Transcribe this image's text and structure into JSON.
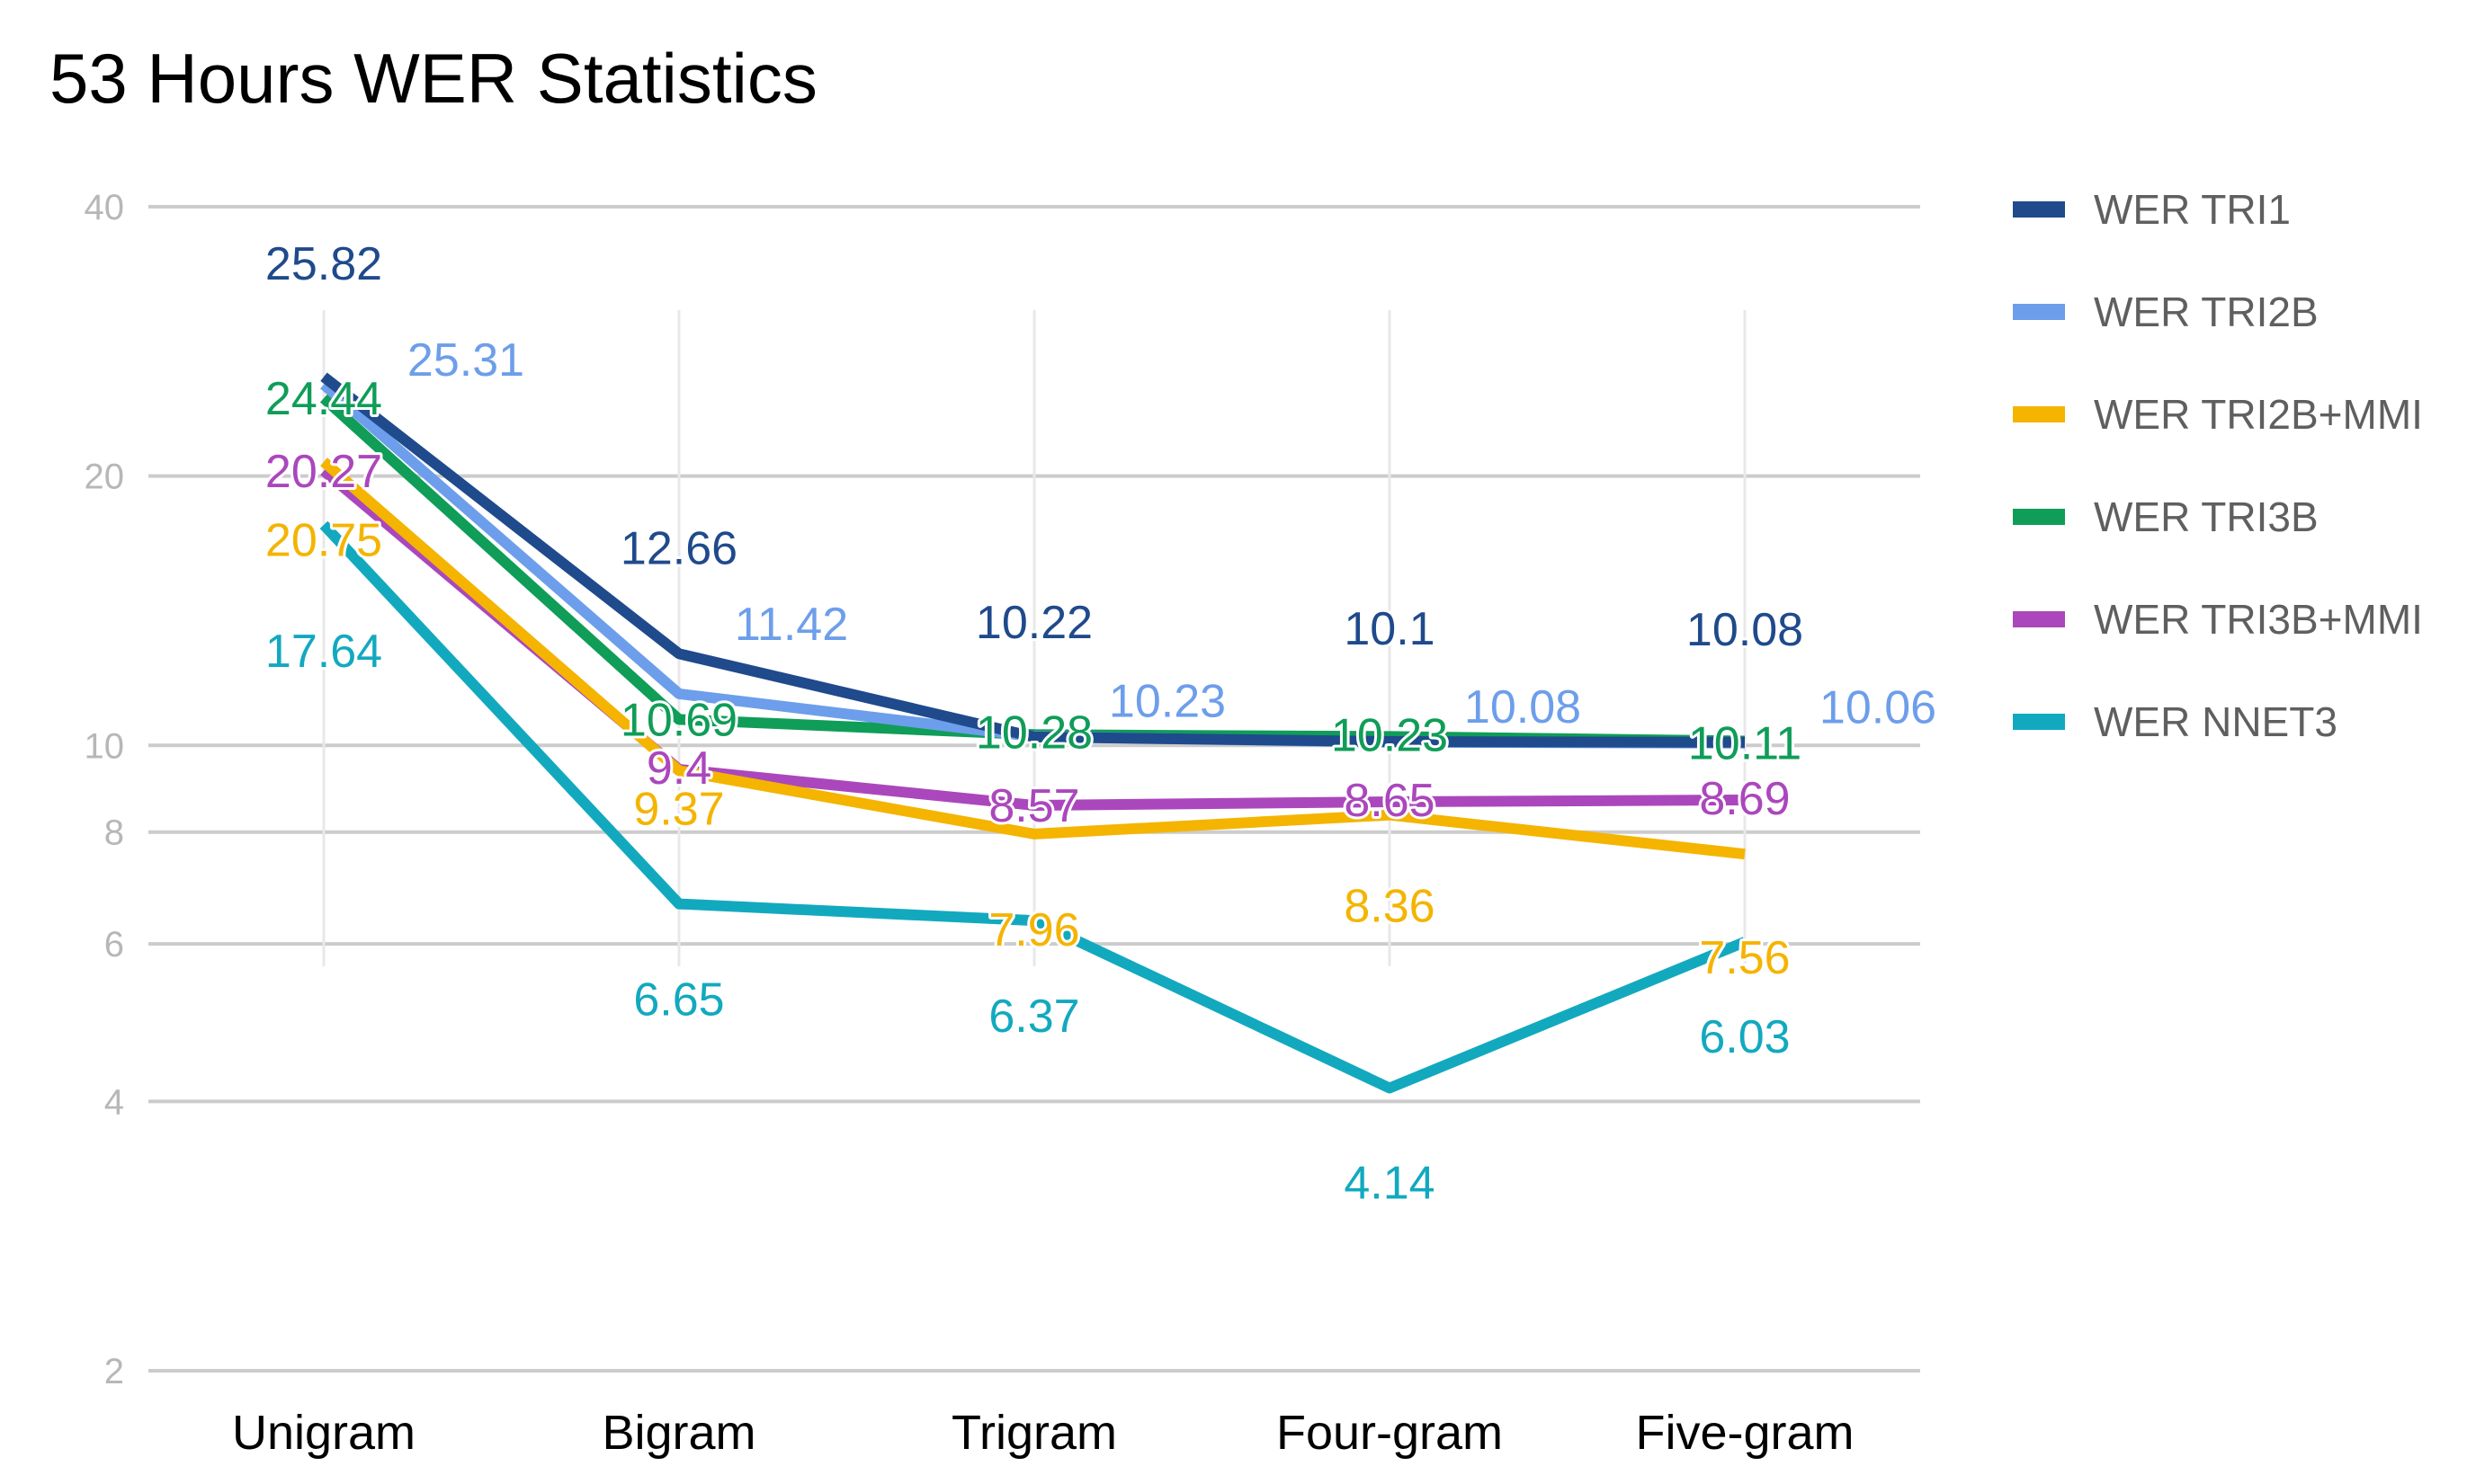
{
  "chart_data": {
    "type": "line",
    "title": "53 Hours WER Statistics",
    "xlabel": "",
    "ylabel": "",
    "yscale": "log",
    "ylim": [
      2,
      40
    ],
    "yticks": [
      {
        "value": 2,
        "label": "2"
      },
      {
        "value": 4,
        "label": "4"
      },
      {
        "value": 6,
        "label": "6"
      },
      {
        "value": 8,
        "label": "8"
      },
      {
        "value": 10,
        "label": "10"
      },
      {
        "value": 20,
        "label": "20"
      },
      {
        "value": 40,
        "label": "40"
      }
    ],
    "grid": true,
    "legend_position": "right",
    "categories": [
      "Unigram",
      "Bigram",
      "Trigram",
      "Four-gram",
      "Five-gram"
    ],
    "series": [
      {
        "name": "WER TRI1",
        "color": "#1f4a8c",
        "values": [
          25.82,
          12.66,
          10.22,
          10.1,
          10.08
        ],
        "labels": [
          "25.82",
          "12.66",
          "10.22",
          "10.1",
          "10.08"
        ]
      },
      {
        "name": "WER TRI2B",
        "color": "#6d9eeb",
        "values": [
          25.31,
          11.42,
          10.23,
          10.08,
          10.06
        ],
        "labels": [
          "25.31",
          "11.42",
          "10.23",
          "10.08",
          "10.06"
        ]
      },
      {
        "name": "WER TRI2B+MMI",
        "color": "#f4b400",
        "values": [
          20.75,
          9.37,
          7.96,
          8.36,
          7.56
        ],
        "labels": [
          "20.75",
          "9.37",
          "7.96",
          "8.36",
          "7.56"
        ]
      },
      {
        "name": "WER TRI3B",
        "color": "#0f9d58",
        "values": [
          24.44,
          10.69,
          10.28,
          10.23,
          10.11
        ],
        "labels": [
          "24.44",
          "10.69",
          "10.28",
          "10.23",
          "10.11"
        ]
      },
      {
        "name": "WER TRI3B+MMI",
        "color": "#ab47bc",
        "values": [
          20.27,
          9.4,
          8.57,
          8.65,
          8.69
        ],
        "labels": [
          "20.27",
          "9.4",
          "8.57",
          "8.65",
          "8.69"
        ]
      },
      {
        "name": "WER NNET3",
        "color": "#12a9bf",
        "values": [
          17.64,
          6.65,
          6.37,
          4.14,
          6.03
        ],
        "labels": [
          "17.64",
          "6.65",
          "6.37",
          "4.14",
          "6.03"
        ]
      }
    ]
  }
}
